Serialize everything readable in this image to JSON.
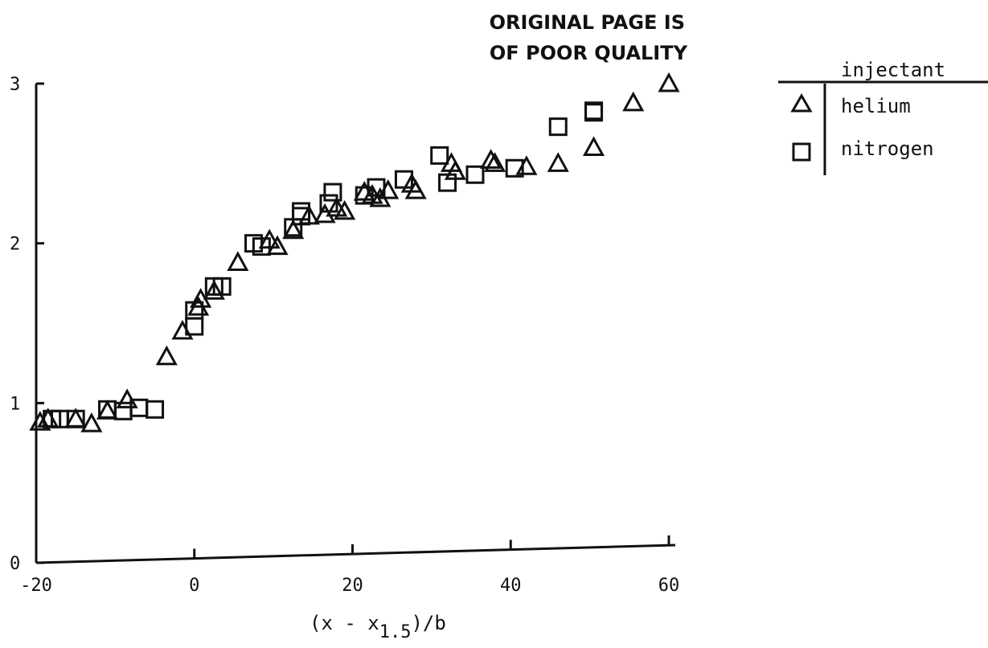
{
  "stamp": {
    "line1": "ORIGINAL PAGE IS",
    "line2": "OF POOR QUALITY"
  },
  "chart_data": {
    "type": "scatter",
    "title": "",
    "xlabel": "(x - x1.5)/b",
    "xlabel_main": "(x - x",
    "xlabel_sub": "1.5",
    "xlabel_tail": ")/b",
    "ylabel": "",
    "xlim": [
      -20,
      60
    ],
    "ylim": [
      0,
      3
    ],
    "xticks": [
      -20,
      0,
      20,
      40,
      60
    ],
    "xtick_labels": [
      "-20",
      "0",
      "20",
      "40",
      "60"
    ],
    "yticks": [
      0,
      1,
      2,
      3
    ],
    "ytick_labels": [
      "0",
      "1",
      "2",
      "3"
    ],
    "grid": false,
    "legend_title": "injectant",
    "legend_position": "top-right",
    "series": [
      {
        "name": "helium",
        "marker": "triangle",
        "points": [
          [
            -19.5,
            0.88
          ],
          [
            -18.5,
            0.9
          ],
          [
            -15,
            0.9
          ],
          [
            -13,
            0.87
          ],
          [
            -11,
            0.95
          ],
          [
            -8.5,
            1.02
          ],
          [
            -3.5,
            1.29
          ],
          [
            -1.5,
            1.45
          ],
          [
            0.5,
            1.6
          ],
          [
            0.8,
            1.65
          ],
          [
            2.5,
            1.7
          ],
          [
            5.5,
            1.88
          ],
          [
            9.5,
            2.02
          ],
          [
            10.5,
            1.98
          ],
          [
            12.5,
            2.08
          ],
          [
            14.5,
            2.17
          ],
          [
            16.5,
            2.18
          ],
          [
            18,
            2.22
          ],
          [
            19,
            2.2
          ],
          [
            21.5,
            2.32
          ],
          [
            22.5,
            2.3
          ],
          [
            23.5,
            2.28
          ],
          [
            24.5,
            2.33
          ],
          [
            27.5,
            2.37
          ],
          [
            28,
            2.33
          ],
          [
            32.5,
            2.5
          ],
          [
            33,
            2.45
          ],
          [
            37.5,
            2.52
          ],
          [
            38,
            2.5
          ],
          [
            42,
            2.48
          ],
          [
            46,
            2.5
          ],
          [
            50.5,
            2.6
          ],
          [
            55.5,
            2.88
          ],
          [
            60,
            3.0
          ]
        ]
      },
      {
        "name": "nitrogen",
        "marker": "square",
        "points": [
          [
            -18,
            0.9
          ],
          [
            -17,
            0.9
          ],
          [
            -15,
            0.9
          ],
          [
            -11,
            0.96
          ],
          [
            -9,
            0.95
          ],
          [
            -7,
            0.97
          ],
          [
            -5,
            0.96
          ],
          [
            0,
            1.48
          ],
          [
            0,
            1.58
          ],
          [
            2.5,
            1.73
          ],
          [
            3.5,
            1.73
          ],
          [
            7.5,
            2.0
          ],
          [
            8.5,
            1.98
          ],
          [
            12.5,
            2.1
          ],
          [
            13.5,
            2.17
          ],
          [
            13.5,
            2.2
          ],
          [
            17,
            2.25
          ],
          [
            17.5,
            2.32
          ],
          [
            21.5,
            2.3
          ],
          [
            23,
            2.35
          ],
          [
            26.5,
            2.4
          ],
          [
            31,
            2.55
          ],
          [
            32,
            2.38
          ],
          [
            35.5,
            2.43
          ],
          [
            40.5,
            2.47
          ],
          [
            46,
            2.73
          ],
          [
            50.5,
            2.83
          ],
          [
            50.5,
            2.82
          ]
        ]
      }
    ]
  }
}
